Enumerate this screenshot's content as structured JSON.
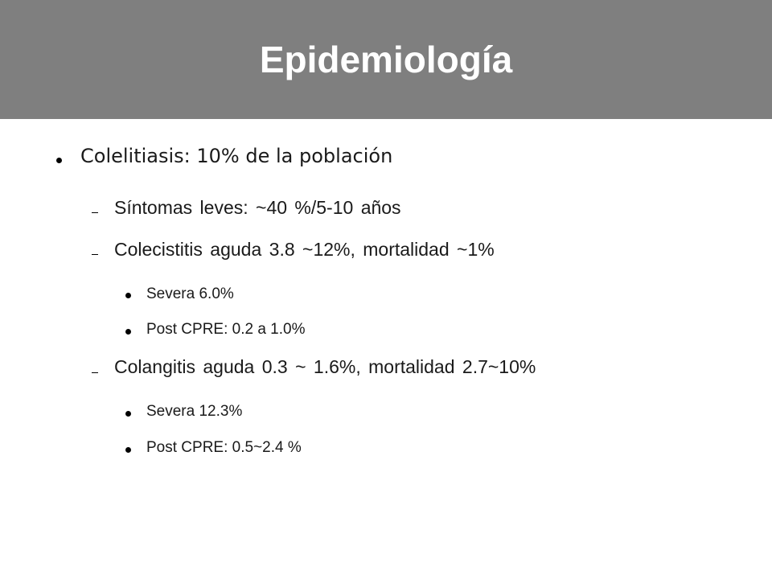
{
  "slide": {
    "title": "Epidemiología",
    "header_color": "#7f7f7f",
    "bullets": {
      "colelitiasis": "Colelitiasis: 10% de la población",
      "sintomas": "Síntomas leves: ~40 %/5-10 años",
      "colecistitis": "Colecistitis aguda 3.8 ~12%, mortalidad ~1%",
      "colecistitis_severa": "Severa 6.0%",
      "colecistitis_post_cpre": "Post CPRE: 0.2 a 1.0%",
      "colangitis": "Colangitis aguda 0.3 ~ 1.6%, mortalidad 2.7~10%",
      "colangitis_severa": "Severa 12.3%",
      "colangitis_post_cpre": "Post CPRE: 0.5~2.4 %"
    },
    "icons": {
      "level1": "round-bullet-icon",
      "level2": "dash-bullet-icon",
      "level3": "round-bullet-icon"
    }
  }
}
